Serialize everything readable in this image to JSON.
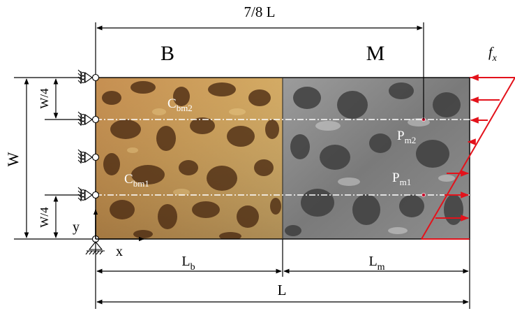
{
  "labels": {
    "top_dimension": "7/8 L",
    "region_b": "B",
    "region_m": "M",
    "force_main": "f",
    "force_sub": "x",
    "width": "W",
    "quarter_top": "W/4",
    "quarter_bottom": "W/4",
    "axis_y": "y",
    "axis_x": "x",
    "lb_main": "L",
    "lb_sub": "b",
    "lm_main": "L",
    "lm_sub": "m",
    "total_length": "L",
    "cbm2_main": "C",
    "cbm2_sub": "bm2",
    "cbm1_main": "C",
    "cbm1_sub": "bm1",
    "pm2_main": "P",
    "pm2_sub": "m2",
    "pm1_main": "P",
    "pm1_sub": "m1"
  },
  "colors": {
    "bone_light": "#e2c07a",
    "bone_dark": "#6a3f1a",
    "metal_light": "#c9c9c9",
    "metal_dark": "#3b3b3b",
    "force_arrows": "#e3121b",
    "dash_lines": "#ffffff",
    "marker_points": "#c8102e"
  }
}
